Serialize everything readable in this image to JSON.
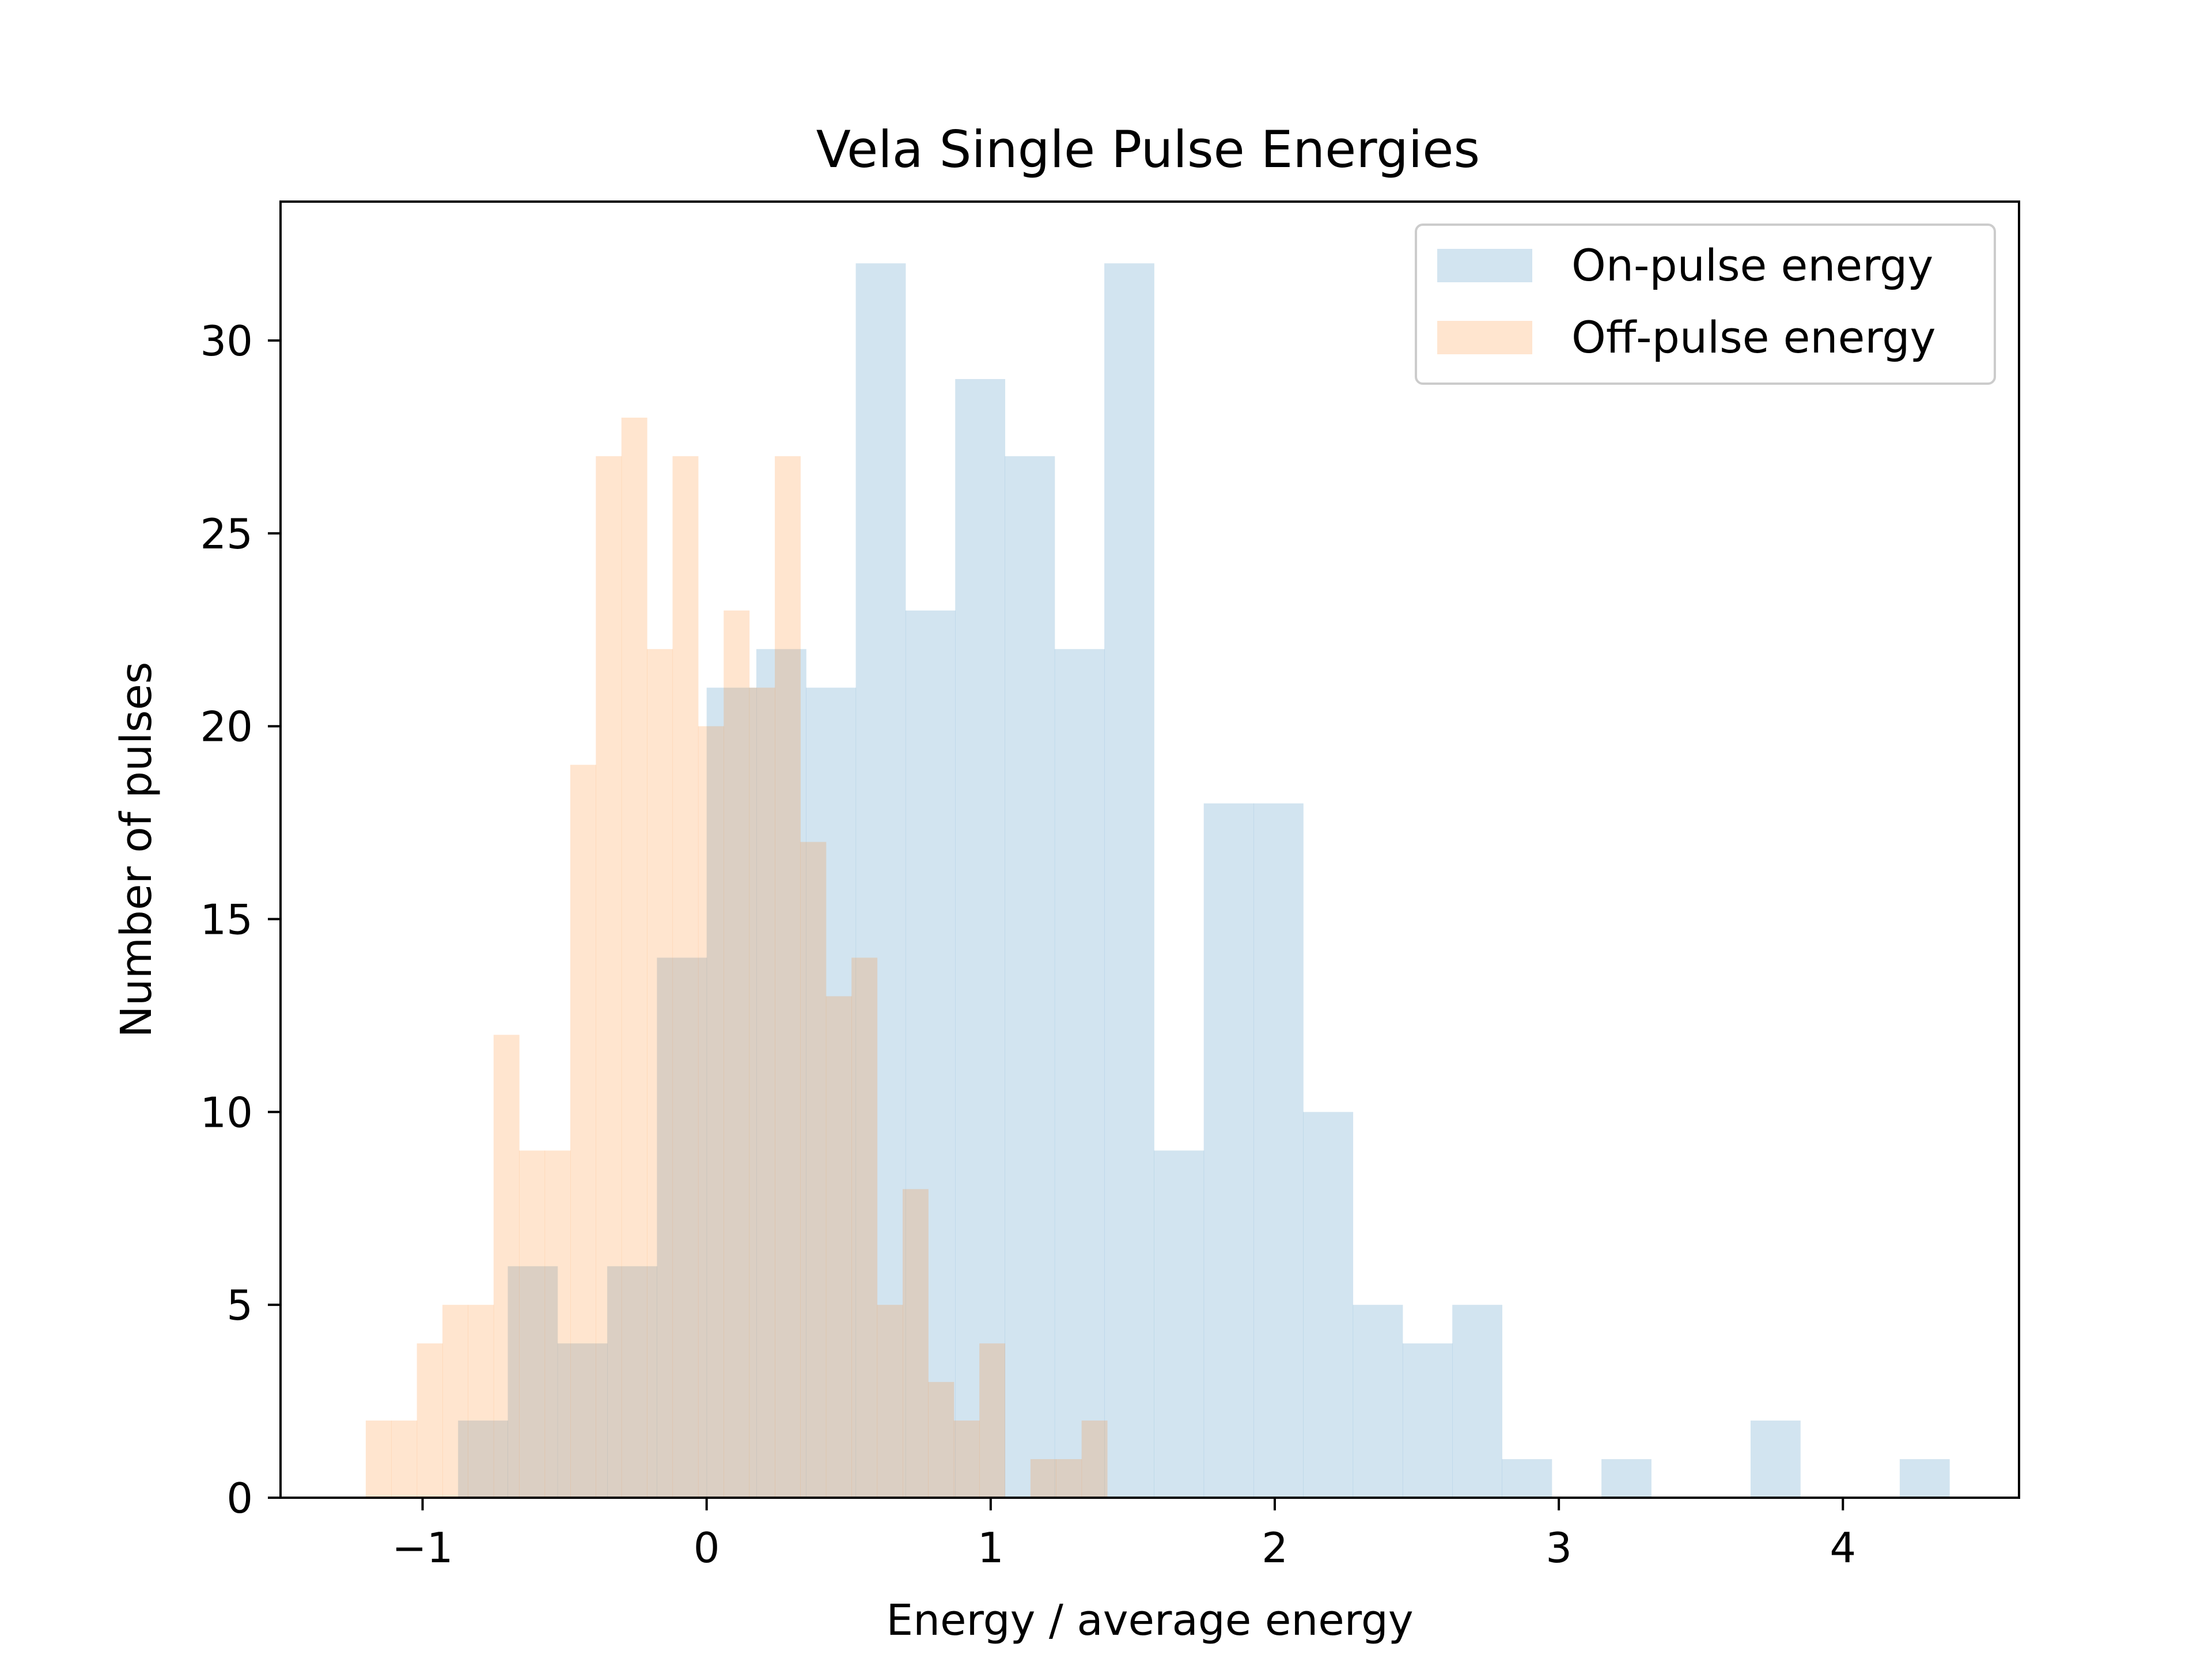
{
  "chart_data": {
    "type": "bar",
    "title": "Vela Single Pulse Energies",
    "xlabel": "Energy / average energy",
    "ylabel": "Number of pulses",
    "xlim": [
      -1.5,
      4.62
    ],
    "ylim": [
      0,
      33.6
    ],
    "xticks": [
      -1,
      0,
      1,
      2,
      3,
      4
    ],
    "xtick_labels": [
      "−1",
      "0",
      "1",
      "2",
      "3",
      "4"
    ],
    "yticks": [
      0,
      5,
      10,
      15,
      20,
      25,
      30
    ],
    "ytick_labels": [
      "0",
      "5",
      "10",
      "15",
      "20",
      "25",
      "30"
    ],
    "grid": false,
    "legend_position": "top-right",
    "series": [
      {
        "name": "On-pulse energy",
        "color": "#1f77b4",
        "alpha": 0.2,
        "bin_edges": [
          -0.875,
          -0.7,
          -0.525,
          -0.35,
          -0.175,
          0.0,
          0.175,
          0.35,
          0.525,
          0.7,
          0.875,
          1.05,
          1.225,
          1.4,
          1.575,
          1.75,
          1.925,
          2.1,
          2.275,
          2.45,
          2.625,
          2.8,
          2.975,
          3.15,
          3.325,
          3.5,
          3.675,
          3.85,
          4.025,
          4.2,
          4.375
        ],
        "counts": [
          2,
          6,
          4,
          6,
          14,
          21,
          22,
          21,
          32,
          23,
          29,
          27,
          22,
          32,
          9,
          18,
          18,
          10,
          5,
          4,
          5,
          1,
          0,
          1,
          0,
          0,
          2,
          0,
          0,
          1
        ]
      },
      {
        "name": "Off-pulse energy",
        "color": "#ff7f0e",
        "alpha": 0.2,
        "bin_edges": [
          -1.2,
          -1.11,
          -1.02,
          -0.93,
          -0.84,
          -0.75,
          -0.66,
          -0.57,
          -0.48,
          -0.39,
          -0.3,
          -0.21,
          -0.12,
          -0.03,
          0.06,
          0.15,
          0.24,
          0.33,
          0.42,
          0.51,
          0.6,
          0.69,
          0.78,
          0.87,
          0.96,
          1.05,
          1.14,
          1.23,
          1.32,
          1.41
        ],
        "counts": [
          2,
          2,
          4,
          5,
          5,
          12,
          9,
          9,
          19,
          27,
          28,
          22,
          27,
          20,
          23,
          21,
          27,
          17,
          13,
          14,
          5,
          8,
          3,
          2,
          4,
          0,
          1,
          1,
          2
        ]
      }
    ]
  }
}
